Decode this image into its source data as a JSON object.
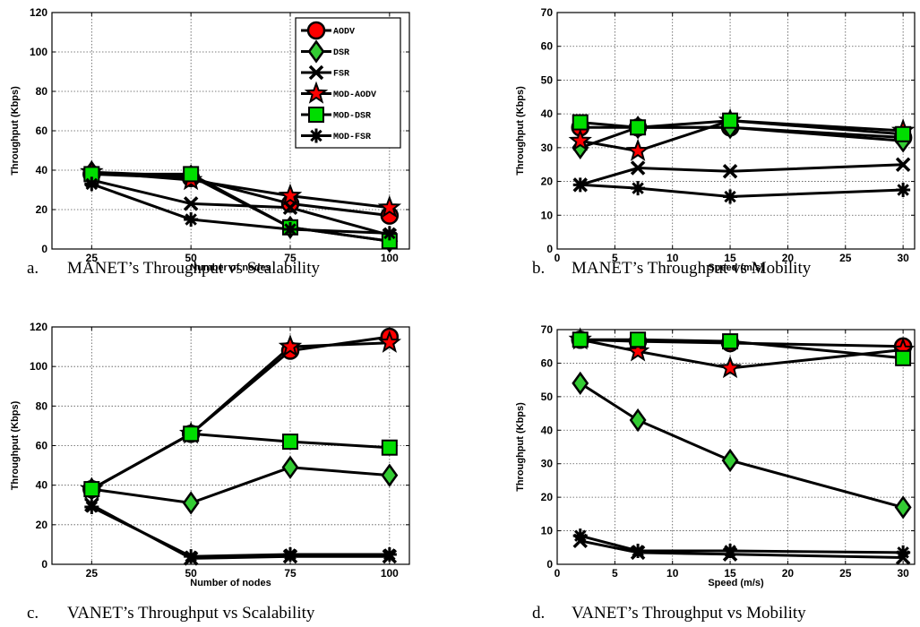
{
  "legend": {
    "entries": [
      "AODV",
      "DSR",
      "FSR",
      "MOD-AODV",
      "MOD-DSR",
      "MOD-FSR"
    ]
  },
  "colors": {
    "AODV": "#ff0000",
    "DSR": "#33cc33",
    "FSR": "#000000",
    "MOD-AODV": "#000000",
    "MOD-DSR": "#00dd00",
    "MOD-FSR": "#000000",
    "line": "#000000"
  },
  "chart_data": [
    {
      "id": "a",
      "type": "line",
      "caption_letter": "a.",
      "caption": "MANET’s Throughput vs Scalability",
      "xlabel": "Number of nodes",
      "ylabel": "Throughput (Kbps)",
      "xlim": [
        15,
        105
      ],
      "ylim": [
        0,
        120
      ],
      "xticks": [
        25,
        50,
        75,
        100
      ],
      "yticks": [
        0,
        20,
        40,
        60,
        80,
        100,
        120
      ],
      "grid": true,
      "legend": "top-right",
      "x": [
        25,
        50,
        75,
        100
      ],
      "series": [
        {
          "name": "AODV",
          "marker": "circle",
          "values": [
            38,
            36,
            23,
            17
          ]
        },
        {
          "name": "DSR",
          "marker": "diamond",
          "values": [
            39,
            37,
            11,
            4
          ]
        },
        {
          "name": "FSR",
          "marker": "x",
          "values": [
            35,
            23,
            21,
            7
          ]
        },
        {
          "name": "MOD-AODV",
          "marker": "star",
          "values": [
            39,
            35,
            27,
            21
          ]
        },
        {
          "name": "MOD-DSR",
          "marker": "square",
          "values": [
            38,
            38,
            11,
            4
          ]
        },
        {
          "name": "MOD-FSR",
          "marker": "asterisk",
          "values": [
            33,
            15,
            10,
            8
          ]
        }
      ]
    },
    {
      "id": "b",
      "type": "line",
      "caption_letter": "b.",
      "caption": "MANET’s Throughput vs Mobility",
      "xlabel": "Speed (m/s)",
      "ylabel": "Throughput (Kbps)",
      "xlim": [
        0,
        31
      ],
      "ylim": [
        0,
        70
      ],
      "xticks": [
        0,
        5,
        10,
        15,
        20,
        25,
        30
      ],
      "yticks": [
        0,
        10,
        20,
        30,
        40,
        50,
        60,
        70
      ],
      "grid": true,
      "x": [
        2,
        7,
        15,
        30
      ],
      "series": [
        {
          "name": "AODV",
          "marker": "circle",
          "values": [
            36,
            36,
            36,
            33
          ]
        },
        {
          "name": "DSR",
          "marker": "diamond",
          "values": [
            30,
            36,
            36,
            32
          ]
        },
        {
          "name": "FSR",
          "marker": "x",
          "values": [
            19,
            24,
            23,
            25
          ]
        },
        {
          "name": "MOD-AODV",
          "marker": "star",
          "values": [
            32,
            29,
            38,
            35
          ]
        },
        {
          "name": "MOD-DSR",
          "marker": "square",
          "values": [
            37.5,
            36,
            38,
            34
          ]
        },
        {
          "name": "MOD-FSR",
          "marker": "asterisk",
          "values": [
            19,
            18,
            15.5,
            17.5
          ]
        }
      ]
    },
    {
      "id": "c",
      "type": "line",
      "caption_letter": "c.",
      "caption": "VANET’s Throughput vs Scalability",
      "xlabel": "Number of nodes",
      "ylabel": "Throughput (Kbps)",
      "xlim": [
        15,
        105
      ],
      "ylim": [
        0,
        120
      ],
      "xticks": [
        25,
        50,
        75,
        100
      ],
      "yticks": [
        0,
        20,
        40,
        60,
        80,
        100,
        120
      ],
      "grid": true,
      "x": [
        25,
        50,
        75,
        100
      ],
      "series": [
        {
          "name": "AODV",
          "marker": "circle",
          "values": [
            38,
            66,
            108,
            115
          ]
        },
        {
          "name": "DSR",
          "marker": "diamond",
          "values": [
            38,
            31,
            49,
            45
          ]
        },
        {
          "name": "FSR",
          "marker": "x",
          "values": [
            30,
            3,
            4,
            4
          ]
        },
        {
          "name": "MOD-AODV",
          "marker": "star",
          "values": [
            38,
            66,
            110,
            112
          ]
        },
        {
          "name": "MOD-DSR",
          "marker": "square",
          "values": [
            38,
            66,
            62,
            59
          ]
        },
        {
          "name": "MOD-FSR",
          "marker": "asterisk",
          "values": [
            29,
            4,
            5,
            5
          ]
        }
      ]
    },
    {
      "id": "d",
      "type": "line",
      "caption_letter": "d.",
      "caption": "VANET’s Throughput vs Mobility",
      "xlabel": "Speed (m/s)",
      "ylabel": "Throughput (Kbps)",
      "xlim": [
        0,
        31
      ],
      "ylim": [
        0,
        70
      ],
      "xticks": [
        0,
        5,
        10,
        15,
        20,
        25,
        30
      ],
      "yticks": [
        0,
        10,
        20,
        30,
        40,
        50,
        60,
        70
      ],
      "grid": true,
      "x": [
        2,
        7,
        15,
        30
      ],
      "series": [
        {
          "name": "AODV",
          "marker": "circle",
          "values": [
            67,
            66.5,
            66,
            65
          ]
        },
        {
          "name": "DSR",
          "marker": "diamond",
          "values": [
            54,
            43,
            31,
            17
          ]
        },
        {
          "name": "FSR",
          "marker": "x",
          "values": [
            7,
            3.5,
            3,
            2
          ]
        },
        {
          "name": "MOD-AODV",
          "marker": "star",
          "values": [
            67,
            63.5,
            58.5,
            64
          ]
        },
        {
          "name": "MOD-DSR",
          "marker": "square",
          "values": [
            67,
            67,
            66.5,
            61.5
          ]
        },
        {
          "name": "MOD-FSR",
          "marker": "asterisk",
          "values": [
            8.5,
            4,
            4,
            3.5
          ]
        }
      ]
    }
  ]
}
